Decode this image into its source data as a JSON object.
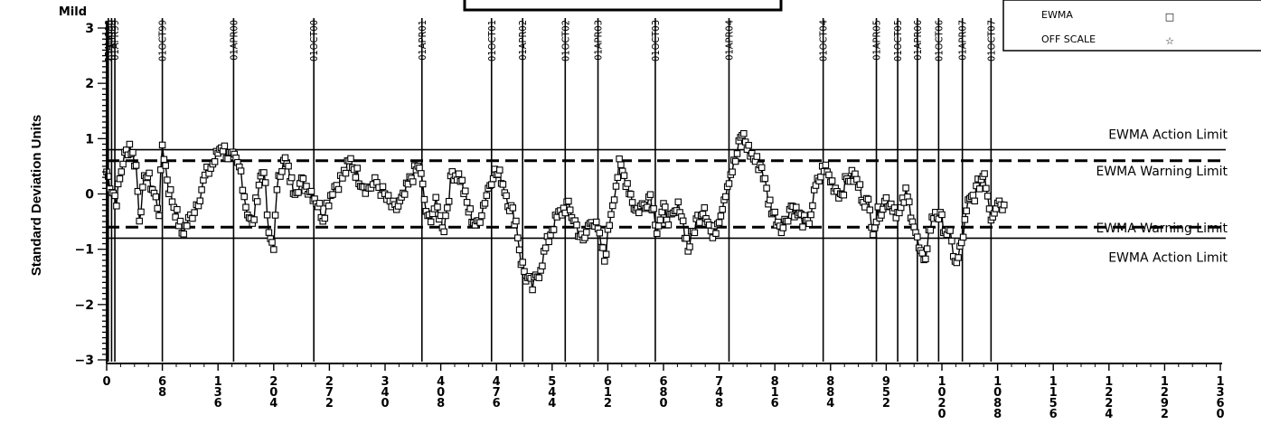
{
  "chart_data": {
    "type": "line",
    "corner_label": "Mild",
    "ylabel": "Standard Deviation Units",
    "xlim": [
      0,
      1360
    ],
    "ylim": [
      -3,
      3
    ],
    "y_ticks": [
      "3",
      "2",
      "1",
      "0",
      "−1",
      "−2",
      "−3"
    ],
    "y_tick_values": [
      3,
      2,
      1,
      0,
      -1,
      -2,
      -3
    ],
    "x_ticks": [
      {
        "value": 0,
        "label": "0"
      },
      {
        "value": 68,
        "label": "68"
      },
      {
        "value": 136,
        "label": "136"
      },
      {
        "value": 204,
        "label": "204"
      },
      {
        "value": 272,
        "label": "272"
      },
      {
        "value": 340,
        "label": "340"
      },
      {
        "value": 408,
        "label": "408"
      },
      {
        "value": 476,
        "label": "476"
      },
      {
        "value": 544,
        "label": "544"
      },
      {
        "value": 612,
        "label": "612"
      },
      {
        "value": 680,
        "label": "680"
      },
      {
        "value": 748,
        "label": "748"
      },
      {
        "value": 816,
        "label": "816"
      },
      {
        "value": 884,
        "label": "884"
      },
      {
        "value": 952,
        "label": "952"
      },
      {
        "value": 1020,
        "label": "1020"
      },
      {
        "value": 1088,
        "label": "1088"
      },
      {
        "value": 1156,
        "label": "1156"
      },
      {
        "value": 1224,
        "label": "1224"
      },
      {
        "value": 1292,
        "label": "1292"
      },
      {
        "value": 1360,
        "label": "1360"
      }
    ],
    "reference_dates": [
      {
        "x": 2,
        "label": "25AUG98"
      },
      {
        "x": 6,
        "label": "01APR99"
      },
      {
        "x": 10,
        "label": "01APR99"
      },
      {
        "x": 68,
        "label": "01OCT99"
      },
      {
        "x": 155,
        "label": "01APR00"
      },
      {
        "x": 253,
        "label": "01OCT00"
      },
      {
        "x": 385,
        "label": "01APR01"
      },
      {
        "x": 470,
        "label": "01OCT01"
      },
      {
        "x": 508,
        "label": "01APR02"
      },
      {
        "x": 560,
        "label": "01OCT02"
      },
      {
        "x": 600,
        "label": "01APR03"
      },
      {
        "x": 670,
        "label": "01OCT03"
      },
      {
        "x": 760,
        "label": "01APR04"
      },
      {
        "x": 875,
        "label": "01OCT04"
      },
      {
        "x": 940,
        "label": "01APR05"
      },
      {
        "x": 966,
        "label": "01OCT05"
      },
      {
        "x": 990,
        "label": "01APR06"
      },
      {
        "x": 1016,
        "label": "01OCT06"
      },
      {
        "x": 1045,
        "label": "01APR07"
      },
      {
        "x": 1080,
        "label": "01OCT07"
      }
    ],
    "limits": [
      {
        "name": "EWMA Action Limit",
        "value": 0.8,
        "style": "solid"
      },
      {
        "name": "EWMA Warning Limit",
        "value": 0.6,
        "style": "dashed"
      },
      {
        "name": "EWMA Warning Limit",
        "value": -0.6,
        "style": "dashed"
      },
      {
        "name": "EWMA Action Limit",
        "value": -0.8,
        "style": "solid"
      }
    ],
    "series": [
      {
        "name": "EWMA",
        "marker": "square",
        "keypoints": [
          [
            0,
            0.4
          ],
          [
            6,
            0.1
          ],
          [
            12,
            -0.1
          ],
          [
            20,
            0.6
          ],
          [
            28,
            0.9
          ],
          [
            36,
            0.5
          ],
          [
            40,
            -0.4
          ],
          [
            48,
            0.4
          ],
          [
            56,
            0.1
          ],
          [
            64,
            -0.3
          ],
          [
            68,
            0.9
          ],
          [
            76,
            0.1
          ],
          [
            84,
            -0.3
          ],
          [
            92,
            -0.7
          ],
          [
            100,
            -0.5
          ],
          [
            112,
            -0.1
          ],
          [
            120,
            0.3
          ],
          [
            132,
            0.6
          ],
          [
            140,
            0.9
          ],
          [
            148,
            0.7
          ],
          [
            156,
            0.6
          ],
          [
            164,
            0.4
          ],
          [
            170,
            -0.2
          ],
          [
            178,
            -0.6
          ],
          [
            186,
            0.2
          ],
          [
            192,
            0.5
          ],
          [
            198,
            -0.8
          ],
          [
            204,
            -0.9
          ],
          [
            210,
            0.4
          ],
          [
            218,
            0.6
          ],
          [
            228,
            0.1
          ],
          [
            238,
            0.2
          ],
          [
            248,
            0.1
          ],
          [
            256,
            -0.1
          ],
          [
            264,
            -0.4
          ],
          [
            276,
            0.1
          ],
          [
            288,
            0.3
          ],
          [
            298,
            0.6
          ],
          [
            308,
            0.3
          ],
          [
            318,
            0.1
          ],
          [
            330,
            0.2
          ],
          [
            342,
            -0.1
          ],
          [
            352,
            -0.3
          ],
          [
            362,
            -0.1
          ],
          [
            372,
            0.3
          ],
          [
            382,
            0.5
          ],
          [
            392,
            -0.5
          ],
          [
            402,
            -0.2
          ],
          [
            412,
            -0.6
          ],
          [
            422,
            0.4
          ],
          [
            432,
            0.3
          ],
          [
            442,
            -0.3
          ],
          [
            452,
            -0.6
          ],
          [
            462,
            -0.1
          ],
          [
            472,
            0.4
          ],
          [
            482,
            0.3
          ],
          [
            492,
            -0.2
          ],
          [
            500,
            -0.5
          ],
          [
            506,
            -1.2
          ],
          [
            512,
            -1.5
          ],
          [
            520,
            -1.7
          ],
          [
            528,
            -1.4
          ],
          [
            536,
            -1.0
          ],
          [
            544,
            -0.6
          ],
          [
            552,
            -0.4
          ],
          [
            562,
            -0.2
          ],
          [
            572,
            -0.5
          ],
          [
            582,
            -0.9
          ],
          [
            592,
            -0.4
          ],
          [
            600,
            -0.7
          ],
          [
            608,
            -1.2
          ],
          [
            616,
            -0.3
          ],
          [
            626,
            0.5
          ],
          [
            636,
            0.2
          ],
          [
            646,
            -0.3
          ],
          [
            656,
            -0.2
          ],
          [
            664,
            0.0
          ],
          [
            672,
            -0.6
          ],
          [
            680,
            -0.3
          ],
          [
            690,
            -0.5
          ],
          [
            700,
            -0.2
          ],
          [
            710,
            -1.0
          ],
          [
            720,
            -0.5
          ],
          [
            730,
            -0.2
          ],
          [
            740,
            -0.8
          ],
          [
            750,
            -0.3
          ],
          [
            760,
            0.3
          ],
          [
            768,
            0.6
          ],
          [
            776,
            1.1
          ],
          [
            784,
            0.8
          ],
          [
            792,
            0.6
          ],
          [
            800,
            0.5
          ],
          [
            808,
            -0.1
          ],
          [
            816,
            -0.4
          ],
          [
            826,
            -0.6
          ],
          [
            836,
            -0.2
          ],
          [
            846,
            -0.4
          ],
          [
            856,
            -0.6
          ],
          [
            866,
            0.1
          ],
          [
            876,
            0.5
          ],
          [
            886,
            0.2
          ],
          [
            896,
            0.0
          ],
          [
            906,
            0.3
          ],
          [
            914,
            0.3
          ],
          [
            922,
            0.0
          ],
          [
            930,
            -0.2
          ],
          [
            936,
            -0.6
          ],
          [
            944,
            -0.3
          ],
          [
            952,
            -0.1
          ],
          [
            960,
            -0.2
          ],
          [
            968,
            -0.4
          ],
          [
            976,
            0.0
          ],
          [
            984,
            -0.4
          ],
          [
            992,
            -1.0
          ],
          [
            998,
            -1.3
          ],
          [
            1004,
            -0.7
          ],
          [
            1012,
            -0.3
          ],
          [
            1020,
            -0.5
          ],
          [
            1030,
            -0.8
          ],
          [
            1038,
            -1.3
          ],
          [
            1044,
            -0.9
          ],
          [
            1052,
            -0.2
          ],
          [
            1060,
            0.0
          ],
          [
            1066,
            0.2
          ],
          [
            1072,
            0.4
          ],
          [
            1080,
            -0.4
          ],
          [
            1088,
            -0.1
          ],
          [
            1096,
            -0.2
          ]
        ]
      },
      {
        "name": "OFF SCALE",
        "marker": "star",
        "keypoints": []
      }
    ],
    "limit_labels": [
      "EWMA Action Limit",
      "EWMA Warning Limit",
      "EWMA Warning Limit",
      "EWMA Action Limit"
    ],
    "legend": {
      "position": "top-right",
      "entries": [
        {
          "label": "EWMA",
          "symbol": "□"
        },
        {
          "label": "OFF SCALE",
          "symbol": "☆"
        }
      ]
    },
    "colors": {
      "ink": "#000000",
      "background": "#ffffff"
    }
  }
}
